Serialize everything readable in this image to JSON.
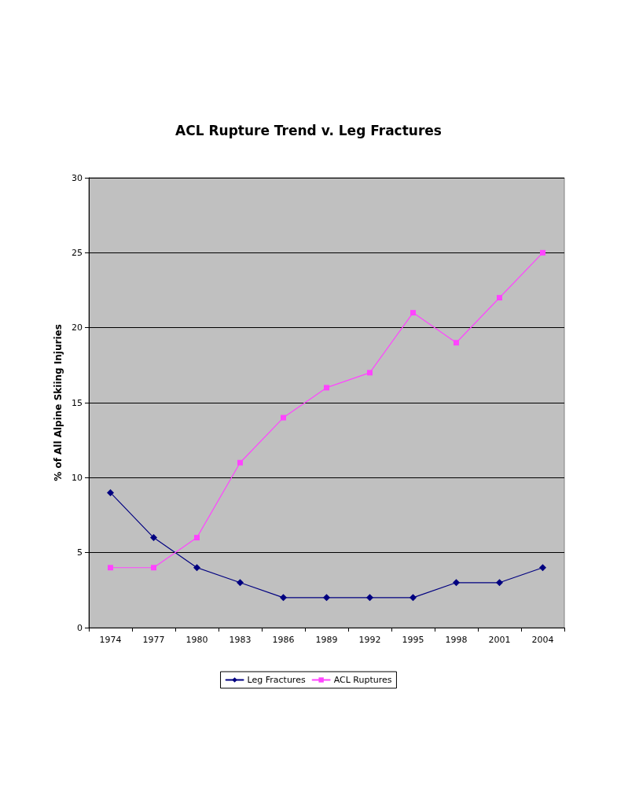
{
  "chart_data": {
    "type": "line",
    "title": "ACL Rupture Trend v. Leg Fractures",
    "ylabel": "% of All Alpine Skiing Injuries",
    "categories": [
      "1974",
      "1977",
      "1980",
      "1983",
      "1986",
      "1989",
      "1992",
      "1995",
      "1998",
      "2001",
      "2004"
    ],
    "series": [
      {
        "name": "Leg Fractures",
        "color": "#000080",
        "marker": "diamond",
        "values": [
          9,
          6,
          4,
          3,
          2,
          2,
          2,
          2,
          3,
          3,
          4
        ]
      },
      {
        "name": "ACL Ruptures",
        "color": "#ff44ff",
        "marker": "square",
        "values": [
          4,
          4,
          6,
          11,
          14,
          16,
          17,
          21,
          19,
          22,
          25
        ]
      }
    ],
    "ylim": [
      0,
      30
    ],
    "yticks": [
      0,
      5,
      10,
      15,
      20,
      25,
      30
    ],
    "grid": "y",
    "legend": "bottom",
    "line_style": "solid"
  }
}
